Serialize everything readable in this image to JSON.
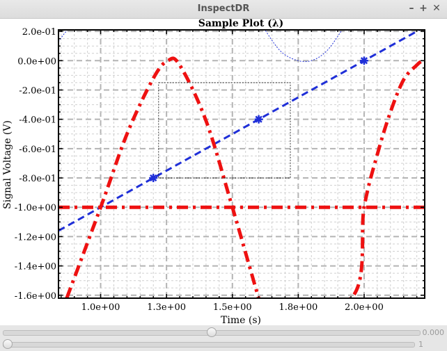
{
  "window": {
    "title": "InspectDR",
    "minimize_glyph": "–",
    "maximize_glyph": "+",
    "close_glyph": "✕"
  },
  "chart_data": {
    "type": "line",
    "title": "Sample Plot (λ)",
    "xlabel": "Time (s)",
    "ylabel": "Signal Voltage (V)",
    "xlim": [
      0.84,
      2.23
    ],
    "ylim": [
      -1.62,
      0.21
    ],
    "x_ticks": [
      1.0,
      1.25,
      1.5,
      1.75,
      2.0
    ],
    "x_tick_labels": [
      "1.0e+00",
      "1.3e+00",
      "1.5e+00",
      "1.8e+00",
      "2.0e+00"
    ],
    "y_ticks": [
      0.2,
      0.0,
      -0.2,
      -0.4,
      -0.6,
      -0.8,
      -1.0,
      -1.2,
      -1.4,
      -1.6
    ],
    "y_tick_labels": [
      "2.0e-01",
      "0.0e+00",
      "-2.0e-01",
      "-4.0e-01",
      "-6.0e-01",
      "-8.0e-01",
      "-1.0e+00",
      "-1.2e+00",
      "-1.4e+00",
      "-1.6e+00"
    ],
    "grid": true,
    "series": [
      {
        "style": "dash",
        "color": "#1f2fd8",
        "marker": "asterisk",
        "x": [
          0.84,
          1.2,
          1.6,
          2.0,
          2.22
        ],
        "y": [
          -1.16,
          -0.8,
          -0.4,
          0.0,
          0.22
        ],
        "marker_x": [
          1.2,
          1.6,
          2.0
        ],
        "marker_y": [
          -0.8,
          -0.4,
          0.0
        ]
      },
      {
        "style": "dash-dot",
        "color": "#ee1111",
        "x": [
          0.84,
          1.0,
          1.1,
          1.2,
          1.255,
          1.3,
          1.4,
          1.5,
          1.6,
          1.61,
          1.95,
          2.0,
          2.05,
          2.1,
          2.15,
          2.2,
          2.22
        ],
        "y": [
          -1.77,
          -1.0,
          -0.5,
          -0.12,
          0.0,
          -0.03,
          -0.41,
          -1.0,
          -1.62,
          -1.65,
          -1.62,
          -1.0,
          -0.64,
          -0.35,
          -0.13,
          -0.03,
          0.0
        ]
      },
      {
        "style": "dash-dot",
        "color": "#ee1111",
        "x": [
          0.84,
          2.23
        ],
        "y": [
          -1.0,
          -1.0
        ]
      },
      {
        "style": "dotted-thin",
        "color": "#1f2fd8",
        "x": [
          0.84,
          0.86,
          0.88
        ],
        "y": [
          0.13,
          0.18,
          0.22
        ]
      },
      {
        "style": "dotted-thin",
        "color": "#1f2fd8",
        "x": [
          1.62,
          1.68,
          1.74,
          1.8,
          1.86,
          1.92
        ],
        "y": [
          0.22,
          0.07,
          0.005,
          0.0,
          0.07,
          0.22
        ]
      }
    ],
    "zoom_box": {
      "x": [
        1.22,
        1.72
      ],
      "y": [
        -0.8,
        -0.15
      ]
    }
  },
  "controls": {
    "slider1": {
      "value": "0.000",
      "fraction": 0.5
    },
    "slider2": {
      "value": "1",
      "fraction": 0.0
    }
  }
}
